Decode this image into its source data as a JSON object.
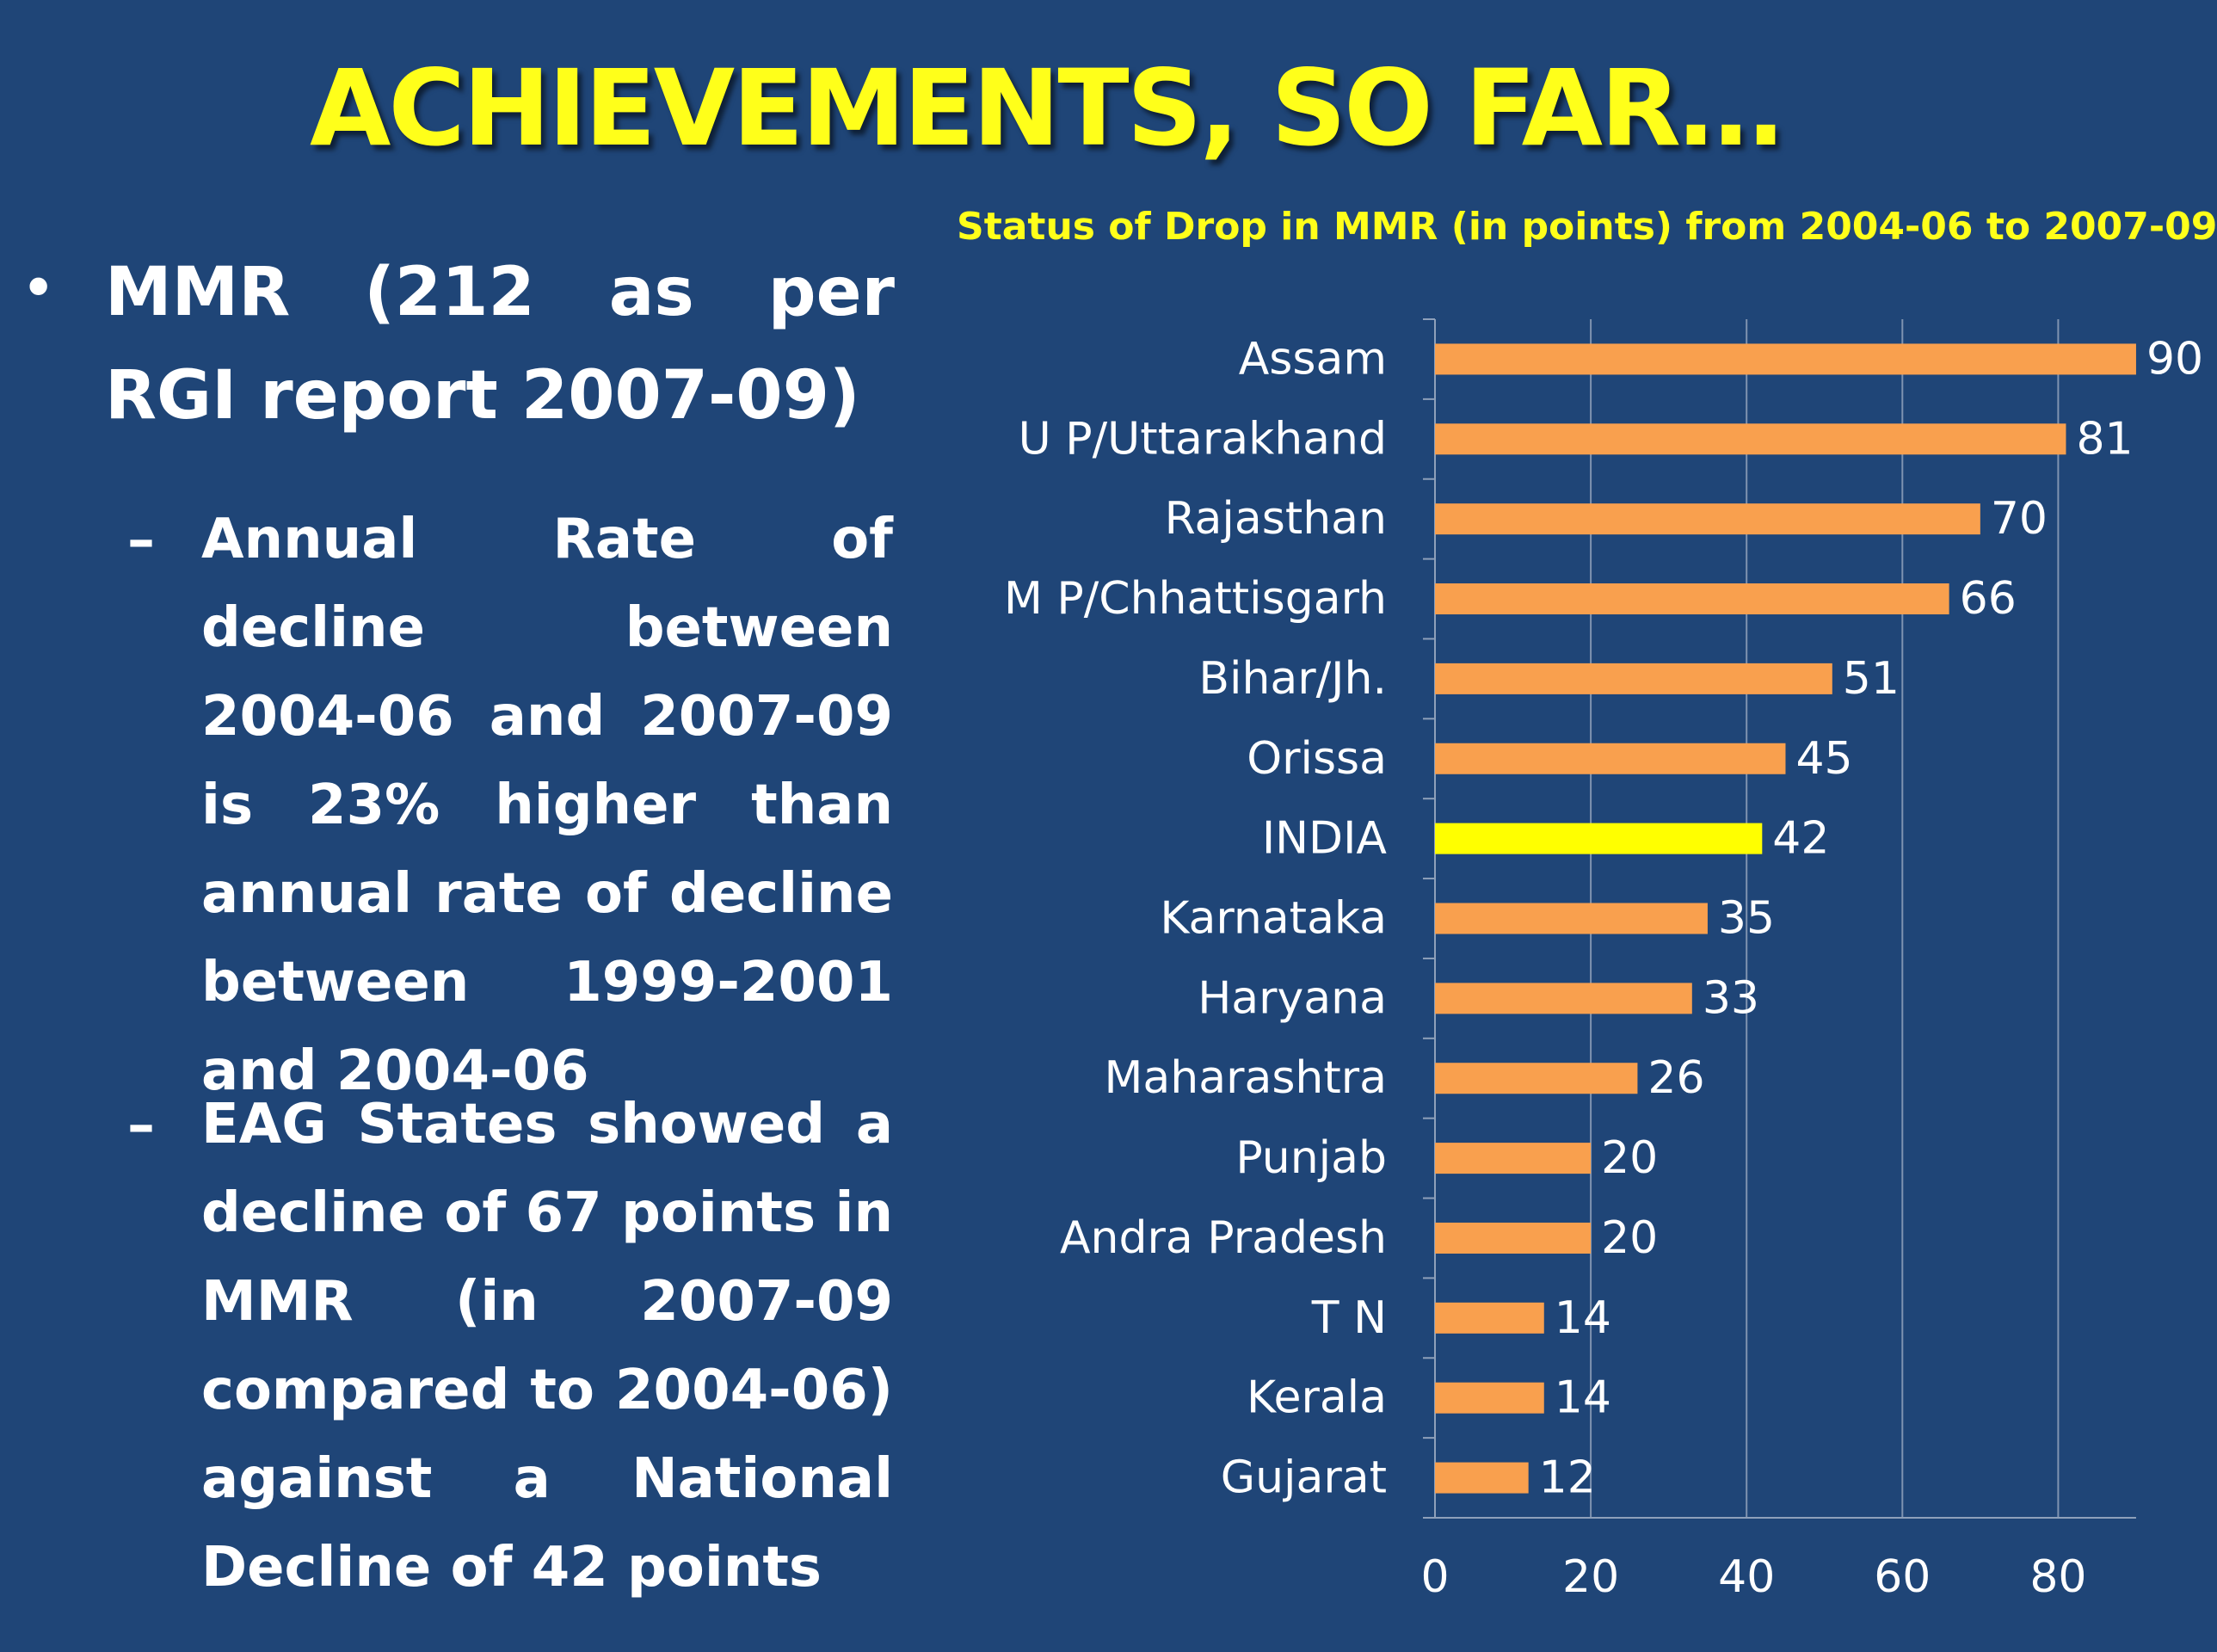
{
  "slide": {
    "title": "ACHIEVEMENTS, SO FAR…",
    "bullet_main": "MMR (212 as per RGI report 2007-09)",
    "sub_bullets": [
      "Annual Rate of decline between 2004-06 and 2007-09 is 23% higher than annual rate of decline between 1999-2001 and 2004-06",
      "EAG States showed a decline of 67 points in MMR (in 2007-09 compared to 2004-06) against a National Decline of 42 points"
    ]
  },
  "colors": {
    "background": "#1f4577",
    "title": "#ffff1a",
    "bar": "#f9a04e",
    "highlight_bar": "#ffff00",
    "text": "#ffffff"
  },
  "chart_data": {
    "type": "bar",
    "orientation": "horizontal",
    "title": "Status of Drop in MMR (in points) from 2004-06 to 2007-09",
    "categories": [
      "Assam",
      "U P/Uttarakhand",
      "Rajasthan",
      "M P/Chhattisgarh",
      "Bihar/Jh.",
      "Orissa",
      "INDIA",
      "Karnataka",
      "Haryana",
      "Maharashtra",
      "Punjab",
      "Andra Pradesh",
      "T N",
      "Kerala",
      "Gujarat"
    ],
    "values": [
      90,
      81,
      70,
      66,
      51,
      45,
      42,
      35,
      33,
      26,
      20,
      20,
      14,
      14,
      12
    ],
    "highlight": "INDIA",
    "xlim": [
      0,
      90
    ],
    "xticks": [
      0,
      20,
      40,
      60,
      80
    ],
    "grid": "vertical"
  }
}
